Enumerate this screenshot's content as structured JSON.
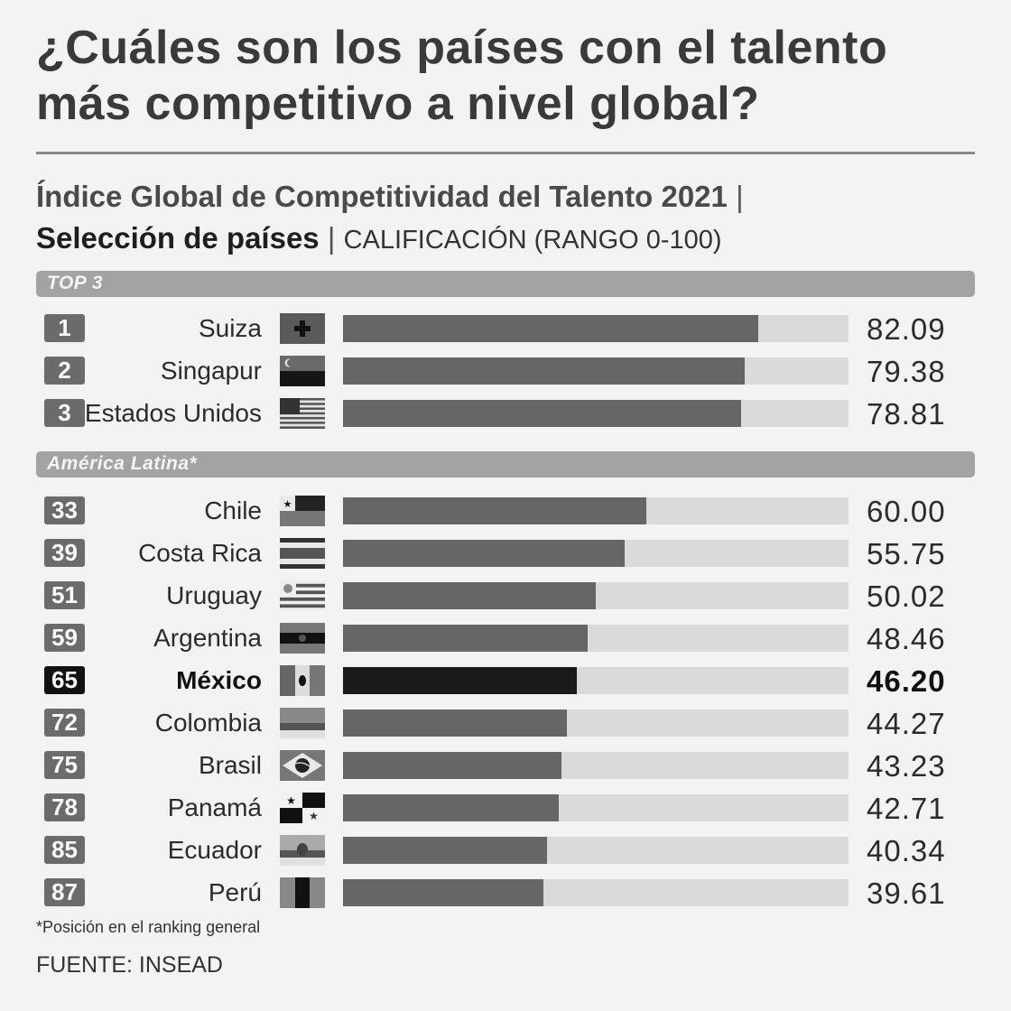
{
  "title": "¿Cuáles son los países con el talento más competitivo a nivel global?",
  "subtitle": {
    "part1": "Índice Global de Competitividad del Talento 2021",
    "sep1": "|",
    "part2": "Selección de países",
    "sep2": "|",
    "part3": "CALIFICACIÓN (RANGO 0-100)"
  },
  "sections": {
    "top": "TOP 3",
    "latam": "América Latina*"
  },
  "chart_data": {
    "type": "bar",
    "title": "¿Cuáles son los países con el talento más competitivo a nivel global?",
    "xlim": [
      0,
      100
    ],
    "highlight": "México",
    "groups": [
      {
        "name": "TOP 3",
        "rows": [
          {
            "rank": "1",
            "country": "Suiza",
            "value": 82.09,
            "label": "82.09",
            "flag": "switzerland-flag-icon"
          },
          {
            "rank": "2",
            "country": "Singapur",
            "value": 79.38,
            "label": "79.38",
            "flag": "singapore-flag-icon"
          },
          {
            "rank": "3",
            "country": "Estados Unidos",
            "value": 78.81,
            "label": "78.81",
            "flag": "usa-flag-icon"
          }
        ]
      },
      {
        "name": "América Latina*",
        "rows": [
          {
            "rank": "33",
            "country": "Chile",
            "value": 60.0,
            "label": "60.00",
            "flag": "chile-flag-icon"
          },
          {
            "rank": "39",
            "country": "Costa Rica",
            "value": 55.75,
            "label": "55.75",
            "flag": "costa-rica-flag-icon"
          },
          {
            "rank": "51",
            "country": "Uruguay",
            "value": 50.02,
            "label": "50.02",
            "flag": "uruguay-flag-icon"
          },
          {
            "rank": "59",
            "country": "Argentina",
            "value": 48.46,
            "label": "48.46",
            "flag": "argentina-flag-icon"
          },
          {
            "rank": "65",
            "country": "México",
            "value": 46.2,
            "label": "46.20",
            "flag": "mexico-flag-icon"
          },
          {
            "rank": "72",
            "country": "Colombia",
            "value": 44.27,
            "label": "44.27",
            "flag": "colombia-flag-icon"
          },
          {
            "rank": "75",
            "country": "Brasil",
            "value": 43.23,
            "label": "43.23",
            "flag": "brazil-flag-icon"
          },
          {
            "rank": "78",
            "country": "Panamá",
            "value": 42.71,
            "label": "42.71",
            "flag": "panama-flag-icon"
          },
          {
            "rank": "85",
            "country": "Ecuador",
            "value": 40.34,
            "label": "40.34",
            "flag": "ecuador-flag-icon"
          },
          {
            "rank": "87",
            "country": "Perú",
            "value": 39.61,
            "label": "39.61",
            "flag": "peru-flag-icon"
          }
        ]
      }
    ]
  },
  "footnote": "*Posición en el ranking general",
  "source": "FUENTE: INSEAD",
  "colors": {
    "bar": "#666666",
    "bar_highlight": "#1a1a1a",
    "track": "#dadada",
    "section_band": "#a3a3a3"
  }
}
